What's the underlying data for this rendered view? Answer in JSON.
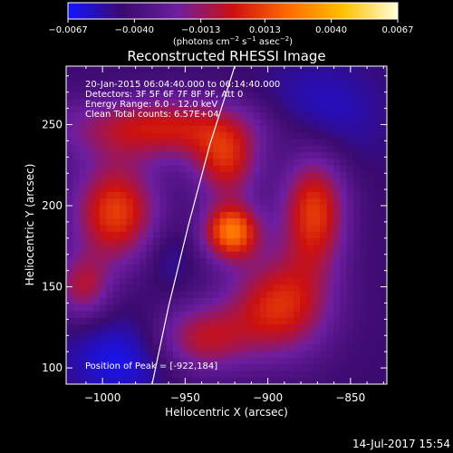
{
  "chart_data": {
    "type": "heatmap",
    "title": "Reconstructed RHESSI Image",
    "xlabel": "Heliocentric X (arcsec)",
    "ylabel": "Heliocentric Y (arcsec)",
    "xlim": [
      -1022,
      -828
    ],
    "ylim": [
      90,
      286
    ],
    "xticks": [
      -1000,
      -950,
      -900,
      -850
    ],
    "xtick_labels": [
      "−1000",
      "−950",
      "−900",
      "−850"
    ],
    "yticks": [
      100,
      150,
      200,
      250
    ],
    "ytick_labels": [
      "100",
      "150",
      "200",
      "250"
    ],
    "colorbar": {
      "range": [
        -0.0067,
        0.0067
      ],
      "ticks": [
        -0.0067,
        -0.004,
        -0.0013,
        0.0013,
        0.004,
        0.0067
      ],
      "tick_labels": [
        "−0.0067",
        "−0.0040",
        "−0.0013",
        "0.0013",
        "0.0040",
        "0.0067"
      ],
      "unit_label": "(photons cm",
      "unit_sup1": "−2",
      "unit_mid": " s",
      "unit_sup2": "−1",
      "unit_mid2": " asec",
      "unit_sup3": "−2",
      "unit_end": ")"
    },
    "colors": [
      "#1414ff",
      "#3a0a6e",
      "#6e1ea0",
      "#cc1010",
      "#ff6a00",
      "#ffc000",
      "#ffffd8"
    ],
    "info_lines": [
      "20-Jan-2015 06:04:40.000 to 06:14:40.000",
      "Detectors: 3F 5F 6F 7F 8F 9F, Att 0",
      "Energy Range: 6.0 - 12.0 keV",
      "Clean     Total counts: 6.57E+04"
    ],
    "peak_label": "Position of Peak = [-922,184]",
    "peak": [
      -922,
      184
    ],
    "sources": [
      {
        "x": -922,
        "y": 184,
        "amp": 0.0067,
        "sx": 12,
        "sy": 12
      },
      {
        "x": -992,
        "y": 196,
        "amp": 0.0055,
        "sx": 18,
        "sy": 22
      },
      {
        "x": -962,
        "y": 248,
        "amp": 0.0045,
        "sx": 45,
        "sy": 14
      },
      {
        "x": -872,
        "y": 197,
        "amp": 0.0054,
        "sx": 14,
        "sy": 26
      },
      {
        "x": -893,
        "y": 138,
        "amp": 0.005,
        "sx": 22,
        "sy": 22
      },
      {
        "x": -940,
        "y": 118,
        "amp": 0.0038,
        "sx": 20,
        "sy": 15
      },
      {
        "x": -1012,
        "y": 150,
        "amp": 0.0035,
        "sx": 12,
        "sy": 14
      },
      {
        "x": -925,
        "y": 225,
        "amp": 0.0042,
        "sx": 14,
        "sy": 16
      },
      {
        "x": -990,
        "y": 105,
        "amp": -0.002,
        "sx": 22,
        "sy": 18
      },
      {
        "x": -870,
        "y": 255,
        "amp": -0.0018,
        "sx": 26,
        "sy": 22
      },
      {
        "x": -960,
        "y": 168,
        "amp": -0.001,
        "sx": 10,
        "sy": 14
      }
    ],
    "limb_label": "",
    "limb": [
      [
        -970,
        90
      ],
      [
        -960,
        138
      ],
      [
        -948,
        188
      ],
      [
        -935,
        238
      ],
      [
        -920,
        286
      ]
    ]
  },
  "footer": {
    "date": "14-Jul-2017 15:54"
  }
}
